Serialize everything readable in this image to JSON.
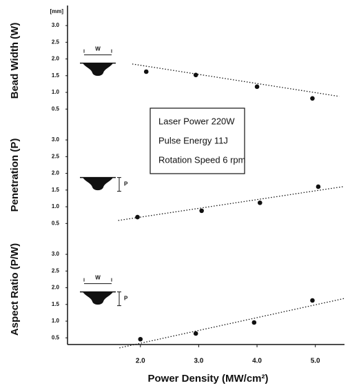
{
  "chart_data": [
    {
      "type": "scatter",
      "ylabel": "Bead Width (W)",
      "y_unit": "[mm]",
      "icon_labels": [
        "W"
      ],
      "xlim": [
        0.75,
        5.5
      ],
      "ylim": [
        0.3,
        3.6
      ],
      "yticks": [
        0.5,
        {
          "value": 1,
          "label": "1.0"
        },
        1.5,
        {
          "value": 2,
          "label": "2.0"
        },
        2.5,
        {
          "value": 3,
          "label": "3.0"
        }
      ],
      "x": [
        2.1,
        2.95,
        4.0,
        4.95
      ],
      "values": [
        1.62,
        1.52,
        1.17,
        0.82
      ],
      "trend": {
        "x": [
          1.86,
          5.41
        ],
        "values": [
          1.85,
          0.88
        ]
      },
      "annotations": [
        "Laser Power 220W",
        "Pulse Energy 11J",
        "Rotation Speed 6 rpm"
      ]
    },
    {
      "type": "scatter",
      "ylabel": "Penetration (P)",
      "icon_labels": [
        "P"
      ],
      "xlim": [
        0.75,
        5.5
      ],
      "ylim": [
        0.3,
        3.6
      ],
      "yticks": [
        0.5,
        {
          "value": 1,
          "label": "1.0"
        },
        1.5,
        {
          "value": 2,
          "label": "2.0"
        },
        2.5,
        {
          "value": 3,
          "label": "3.0"
        }
      ],
      "x": [
        1.95,
        3.05,
        4.05,
        5.05
      ],
      "values": [
        0.69,
        0.88,
        1.12,
        1.6
      ],
      "trend": {
        "x": [
          1.62,
          5.47
        ],
        "values": [
          0.59,
          1.6
        ]
      }
    },
    {
      "type": "scatter",
      "ylabel": "Aspect Ratio (P/W)",
      "icon_labels": [
        "W",
        "P"
      ],
      "xlim": [
        0.75,
        5.5
      ],
      "ylim": [
        0.3,
        3.6
      ],
      "yticks": [
        0.5,
        {
          "value": 1,
          "label": "1.0"
        },
        1.5,
        {
          "value": 2,
          "label": "2.0"
        },
        2.5,
        {
          "value": 3,
          "label": "3.0"
        }
      ],
      "x": [
        2.0,
        2.95,
        3.95,
        4.95
      ],
      "values": [
        0.46,
        0.63,
        0.96,
        1.62
      ],
      "trend": {
        "x": [
          1.64,
          5.5
        ],
        "values": [
          0.2,
          1.68
        ]
      },
      "xlabel": "Power Density (MW/cm²)",
      "xticks": [
        {
          "value": 2,
          "label": "2.0"
        },
        {
          "value": 3,
          "label": "3.0"
        },
        {
          "value": 4,
          "label": "4.0"
        },
        {
          "value": 5,
          "label": "5.0"
        }
      ]
    }
  ]
}
